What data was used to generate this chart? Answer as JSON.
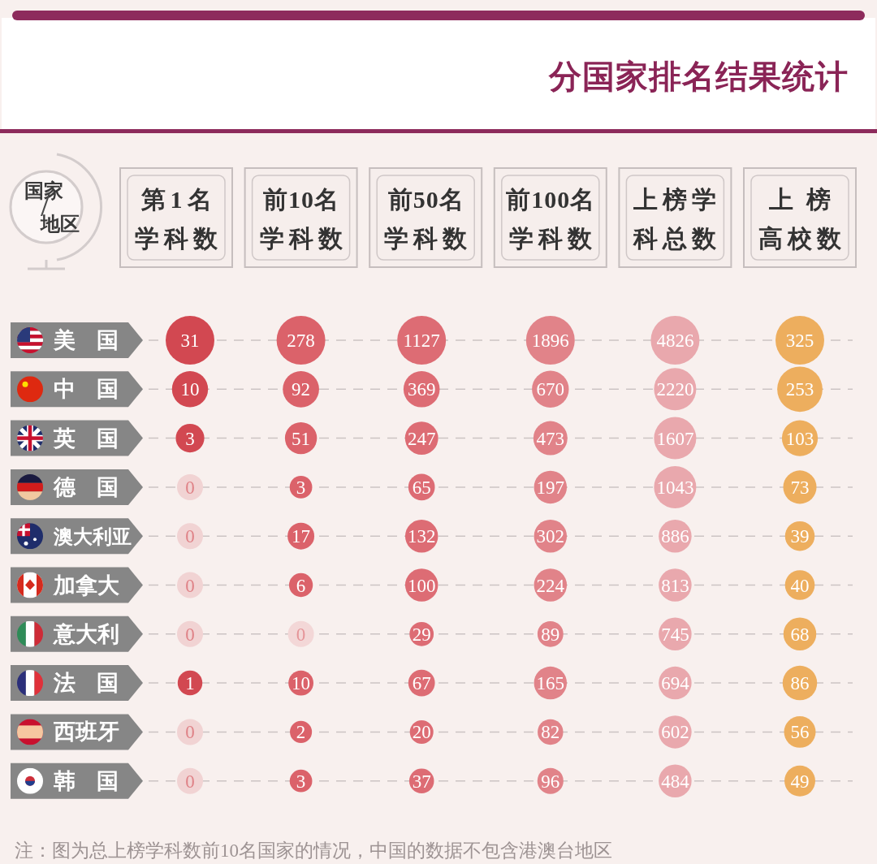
{
  "chart_data": {
    "type": "heatmap",
    "title": "分国家排名结果统计",
    "ylabel": "国家/地区",
    "categories": [
      "第1名学科数",
      "前10名学科数",
      "前50名学科数",
      "前100名学科数",
      "上榜学科总数",
      "上榜高校数"
    ],
    "y_categories": [
      "美国",
      "中国",
      "英国",
      "德国",
      "澳大利亚",
      "加拿大",
      "意大利",
      "法国",
      "西班牙",
      "韩国"
    ],
    "cells": [
      [
        31,
        278,
        1127,
        1896,
        4826,
        325
      ],
      [
        10,
        92,
        369,
        670,
        2220,
        253
      ],
      [
        3,
        51,
        247,
        473,
        1607,
        103
      ],
      [
        0,
        3,
        65,
        197,
        1043,
        73
      ],
      [
        0,
        17,
        132,
        302,
        886,
        39
      ],
      [
        0,
        6,
        100,
        224,
        813,
        40
      ],
      [
        0,
        0,
        29,
        89,
        745,
        68
      ],
      [
        1,
        10,
        67,
        165,
        694,
        86
      ],
      [
        0,
        2,
        20,
        82,
        602,
        56
      ],
      [
        0,
        3,
        37,
        96,
        484,
        49
      ]
    ],
    "colors": [
      "#cf3943",
      "#d8565e",
      "#db6069",
      "#df7a80",
      "#e8a2a7",
      "#eca852"
    ],
    "data_labels": true,
    "annotations": [
      "注：图为总上榜学科数前10名国家的情况，中国的数据不包含港澳台地区"
    ]
  }
}
